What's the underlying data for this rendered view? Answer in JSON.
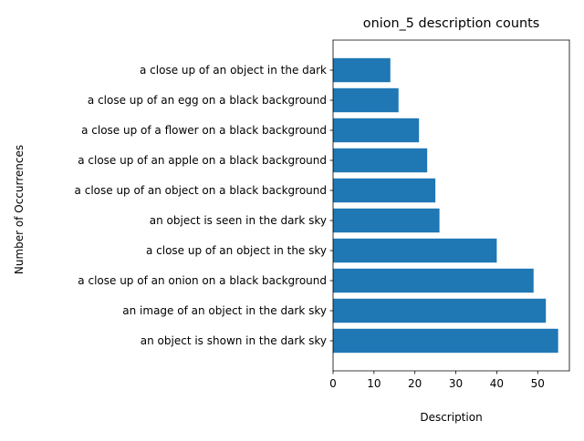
{
  "chart_data": {
    "type": "bar",
    "orientation": "horizontal",
    "title": "onion_5 description counts",
    "xlabel": "Description",
    "ylabel": "Number of Occurrences",
    "categories": [
      "an object is shown in the dark sky",
      "an image of an object in the dark sky",
      "a close up of an onion on a black background",
      "a close up of an object in the sky",
      "an object is seen in the dark sky",
      "a close up of an object on a black background",
      "a close up of an apple on a black background",
      "a close up of a flower on a black background",
      "a close up of an egg on a black background",
      "a close up of an object in the dark"
    ],
    "values": [
      55,
      52,
      49,
      40,
      26,
      25,
      23,
      21,
      16,
      14
    ],
    "xlim": [
      0,
      57.75
    ],
    "xticks": [
      0,
      10,
      20,
      30,
      40,
      50
    ],
    "grid": false,
    "bar_color": "#1f77b4"
  }
}
